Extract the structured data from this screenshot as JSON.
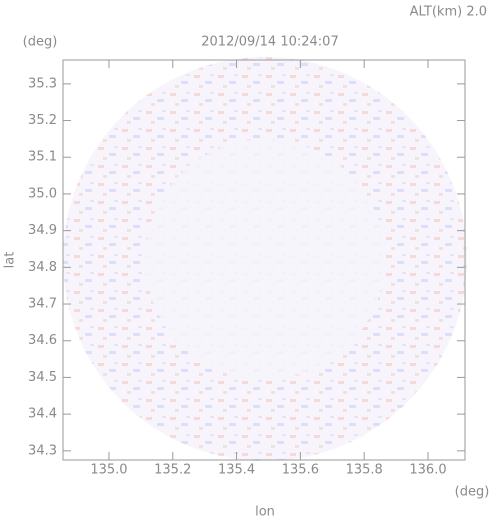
{
  "chart_data": {
    "type": "map",
    "title": "2012/09/14 10:24:07",
    "subtitle": "ALT(km) 2.0",
    "y_unit": "(deg)",
    "x_unit": "(deg)",
    "xlabel": "lon",
    "ylabel": "lat",
    "xlim": [
      134.856,
      136.116
    ],
    "ylim": [
      34.275,
      35.365
    ],
    "xticks": [
      {
        "value": 135,
        "label": "135.0"
      },
      135.2,
      135.4,
      135.6,
      135.8,
      {
        "value": 136,
        "label": "136.0"
      }
    ],
    "yticks": [
      34.3,
      34.4,
      34.5,
      34.6,
      34.7,
      34.8,
      34.9,
      {
        "value": 35,
        "label": "35.0"
      },
      35.1,
      35.2,
      35.3
    ]
  }
}
